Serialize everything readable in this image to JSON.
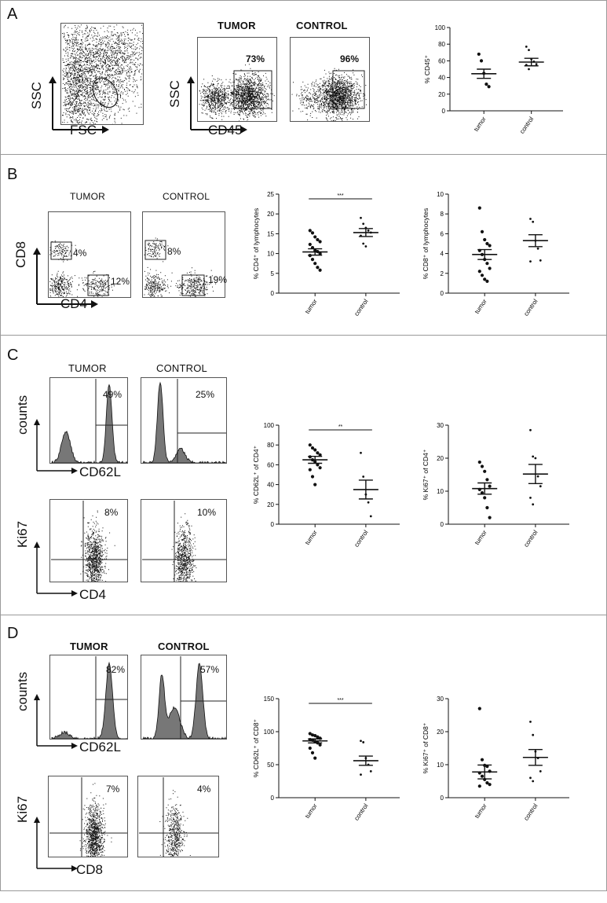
{
  "panels": [
    {
      "letter": "A",
      "top": 0,
      "height": 196
    },
    {
      "letter": "B",
      "top": 196,
      "height": 230
    },
    {
      "letter": "C",
      "top": 426,
      "height": 356
    },
    {
      "letter": "D",
      "top": 782,
      "height": 352
    }
  ],
  "panel_a": {
    "tumor": "TUMOR",
    "control": "CONTROL",
    "fsc_x": "FSC",
    "fsc_y": "SSC",
    "cd45_x": "CD45",
    "cd45_y": "SSC",
    "tumor_pct": "73%",
    "control_pct": "96%"
  },
  "panel_b": {
    "tumor": "TUMOR",
    "control": "CONTROL",
    "x": "CD4",
    "y": "CD8",
    "tumor_cd8": "4%",
    "tumor_cd4": "12%",
    "control_cd8": "8%",
    "control_cd4": "19%"
  },
  "panel_c": {
    "tumor": "TUMOR",
    "control": "CONTROL",
    "hist_y": "counts",
    "hist_x": "CD62L",
    "dot_y": "Ki67",
    "dot_x": "CD4",
    "tumor_hist_pct": "49%",
    "control_hist_pct": "25%",
    "tumor_dot_pct": "8%",
    "control_dot_pct": "10%"
  },
  "panel_d": {
    "tumor": "TUMOR",
    "control": "CONTROL",
    "hist_y": "counts",
    "hist_x": "CD62L",
    "dot_y": "Ki67",
    "dot_x": "CD8",
    "tumor_hist_pct": "82%",
    "control_hist_pct": "57%",
    "tumor_dot_pct": "7%",
    "control_dot_pct": "4%"
  },
  "chart_data": [
    {
      "id": "a1",
      "type": "scatter",
      "ylabel": "% CD45⁺",
      "ylim": [
        0,
        100
      ],
      "yticks": [
        0,
        20,
        40,
        60,
        80,
        100
      ],
      "categories": [
        "tumor",
        "control"
      ],
      "points": [
        [
          68,
          60,
          45,
          32,
          29
        ],
        [
          77,
          73,
          62,
          59,
          56,
          55,
          50
        ]
      ],
      "mean": [
        44.5,
        58.5
      ],
      "sem": [
        5.5,
        4.5
      ],
      "sig": ""
    },
    {
      "id": "b1",
      "type": "scatter",
      "ylabel": "% CD4⁺ of lymphocytes",
      "ylim": [
        0,
        25
      ],
      "yticks": [
        0,
        5,
        10,
        15,
        20,
        25
      ],
      "categories": [
        "tumor",
        "control"
      ],
      "points": [
        [
          15.8,
          15.2,
          14.2,
          13.5,
          13.0,
          12.3,
          11.5,
          10.8,
          10.5,
          10.0,
          9.5,
          8.5,
          7.5,
          6.5,
          5.8
        ],
        [
          19.0,
          17.5,
          16.5,
          15.8,
          15.3,
          14.5,
          12.5,
          11.8
        ]
      ],
      "mean": [
        10.4,
        15.3
      ],
      "sem": [
        0.8,
        1.0
      ],
      "sig": "***"
    },
    {
      "id": "b2",
      "type": "scatter",
      "ylabel": "% CD8⁺ of lymphocytes",
      "ylim": [
        0,
        10
      ],
      "yticks": [
        0,
        2,
        4,
        6,
        8,
        10
      ],
      "categories": [
        "tumor",
        "control"
      ],
      "points": [
        [
          8.6,
          6.2,
          5.4,
          5.0,
          4.8,
          4.3,
          3.9,
          3.4,
          3.0,
          2.5,
          2.2,
          1.8,
          1.4,
          1.2
        ],
        [
          7.5,
          7.2,
          5.3,
          4.5,
          3.3,
          3.2
        ]
      ],
      "mean": [
        3.9,
        5.3
      ],
      "sem": [
        0.5,
        0.6
      ],
      "sig": ""
    },
    {
      "id": "c1",
      "type": "scatter",
      "ylabel": "% CD62L⁺ of CD4⁺",
      "ylim": [
        0,
        100
      ],
      "yticks": [
        0,
        20,
        40,
        60,
        80,
        100
      ],
      "categories": [
        "tumor",
        "control"
      ],
      "points": [
        [
          80,
          77,
          75,
          72,
          70,
          68,
          65,
          63,
          60,
          57,
          55,
          48,
          40
        ],
        [
          72,
          48,
          30,
          22,
          8
        ]
      ],
      "mean": [
        65,
        35
      ],
      "sem": [
        3.5,
        9.5
      ],
      "sig": "**"
    },
    {
      "id": "c2",
      "type": "scatter",
      "ylabel": "% Ki67⁺ of CD4⁺",
      "ylim": [
        0,
        30
      ],
      "yticks": [
        0,
        10,
        20,
        30
      ],
      "categories": [
        "tumor",
        "control"
      ],
      "points": [
        [
          18.8,
          17.5,
          16.0,
          13.5,
          11.5,
          10.5,
          9.5,
          8.0,
          5.0,
          2.0
        ],
        [
          28.5,
          20.5,
          20.0,
          14.5,
          11.5,
          8.0,
          6.0
        ]
      ],
      "mean": [
        10.8,
        15.2
      ],
      "sem": [
        1.7,
        2.9
      ],
      "sig": ""
    },
    {
      "id": "d1",
      "type": "scatter",
      "ylabel": "% CD62L⁺ of CD8⁺",
      "ylim": [
        0,
        150
      ],
      "yticks": [
        0,
        50,
        100,
        150
      ],
      "categories": [
        "tumor",
        "control"
      ],
      "points": [
        [
          97,
          95,
          94,
          92,
          90,
          88,
          87,
          85,
          83,
          80,
          75,
          68,
          60
        ],
        [
          86,
          84,
          60,
          50,
          40,
          35
        ]
      ],
      "mean": [
        86,
        56
      ],
      "sem": [
        3.0,
        7.0
      ],
      "sig": "***"
    },
    {
      "id": "d2",
      "type": "scatter",
      "ylabel": "% Ki67⁺ of CD8⁺",
      "ylim": [
        0,
        30
      ],
      "yticks": [
        0,
        10,
        20,
        30
      ],
      "categories": [
        "tumor",
        "control"
      ],
      "points": [
        [
          27.0,
          11.5,
          9.8,
          9.5,
          8.0,
          7.5,
          6.5,
          5.5,
          4.5,
          4.0,
          3.5
        ],
        [
          23.0,
          19.0,
          14.0,
          12.0,
          8.0,
          6.0,
          5.0
        ]
      ],
      "mean": [
        7.8,
        12.2
      ],
      "sem": [
        2.1,
        2.4
      ],
      "sig": ""
    }
  ]
}
